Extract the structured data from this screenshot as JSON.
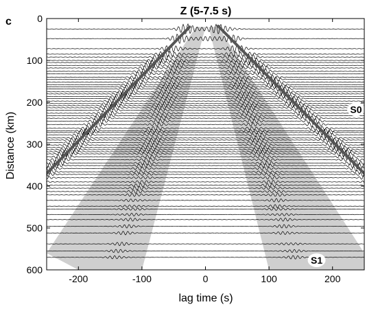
{
  "panel_label": "c",
  "chart_data": {
    "type": "line",
    "title": "Z (5-7.5 s)",
    "xlabel": "lag time (s)",
    "ylabel": "Distance (km)",
    "xlim": [
      -250,
      250
    ],
    "ylim": [
      0,
      600
    ],
    "y_inverted": true,
    "x_ticks": [
      -200,
      -100,
      0,
      100,
      200
    ],
    "y_ticks": [
      0,
      100,
      200,
      300,
      400,
      500,
      600
    ],
    "grid": false,
    "trace_distances_km": [
      25,
      48,
      72,
      85,
      92,
      100,
      105,
      112,
      118,
      126,
      132,
      140,
      145,
      152,
      158,
      163,
      168,
      175,
      180,
      186,
      191,
      197,
      203,
      208,
      213,
      219,
      226,
      232,
      238,
      245,
      253,
      262,
      268,
      272,
      278,
      285,
      290,
      296,
      302,
      308,
      313,
      318,
      323,
      330,
      337,
      345,
      351,
      358,
      366,
      372,
      380,
      390,
      398,
      405,
      413,
      421,
      434,
      448,
      455,
      468,
      480,
      496,
      512,
      538,
      555,
      570
    ],
    "moveout_lines": [
      {
        "points": [
          [
            -25,
            20
          ],
          [
            -250,
            370
          ]
        ]
      },
      {
        "points": [
          [
            20,
            18
          ],
          [
            250,
            370
          ]
        ]
      }
    ],
    "shaded_zones": [
      {
        "polygon": [
          [
            -15,
            20
          ],
          [
            0,
            20
          ],
          [
            -100,
            600
          ],
          [
            -200,
            600
          ],
          [
            -250,
            560
          ]
        ]
      },
      {
        "polygon": [
          [
            5,
            20
          ],
          [
            20,
            20
          ],
          [
            250,
            560
          ],
          [
            250,
            600
          ],
          [
            100,
            600
          ]
        ]
      }
    ],
    "annotations": [
      {
        "text": "S0",
        "x": 237,
        "y": 217
      },
      {
        "text": "S1",
        "x": 175,
        "y": 577
      }
    ],
    "colors": {
      "shade": "#cfcfcf",
      "line": "#555555",
      "trace": "#000000",
      "label_bg": "#ffffff"
    }
  }
}
